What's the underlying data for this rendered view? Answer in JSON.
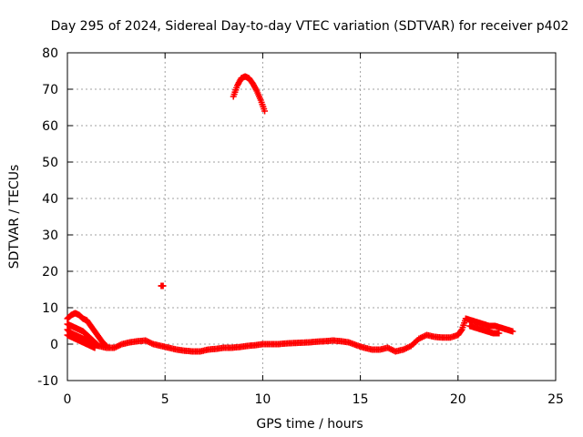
{
  "chart_data": {
    "type": "scatter",
    "title": "Day 295 of 2024, Sidereal Day-to-day VTEC variation (SDTVAR) for receiver p402",
    "xlabel": "GPS time / hours",
    "ylabel": "SDTVAR / TECUs",
    "xlim": [
      0,
      25
    ],
    "ylim": [
      -10,
      80
    ],
    "x_ticks": [
      0,
      5,
      10,
      15,
      20,
      25
    ],
    "x_tick_labels": [
      "0",
      "5",
      "10",
      "15",
      "20",
      "25"
    ],
    "y_ticks": [
      -10,
      0,
      10,
      20,
      30,
      40,
      50,
      60,
      70,
      80
    ],
    "y_tick_labels": [
      "-10",
      "0",
      "10",
      "20",
      "30",
      "40",
      "50",
      "60",
      "70",
      "80"
    ],
    "grid": true,
    "marker": "plus",
    "series": [
      {
        "name": "main trace",
        "color": "#ff0000",
        "x": [
          0.0,
          0.2,
          0.4,
          0.6,
          0.8,
          1.0,
          1.3,
          1.6,
          2.0,
          2.4,
          2.8,
          3.2,
          3.6,
          4.0,
          4.4,
          4.8,
          5.2,
          5.6,
          6.0,
          6.4,
          6.8,
          7.2,
          7.6,
          8.0,
          8.4,
          8.8,
          9.2,
          9.6,
          10.0,
          10.4,
          10.8,
          11.2,
          11.6,
          12.0,
          12.4,
          12.8,
          13.2,
          13.6,
          14.0,
          14.4,
          14.8,
          15.2,
          15.6,
          16.0,
          16.4,
          16.8,
          17.2,
          17.6,
          18.0,
          18.4,
          18.8,
          19.2,
          19.6,
          20.0,
          20.2,
          20.4
        ],
        "values": [
          4.0,
          3.0,
          2.5,
          2.0,
          1.5,
          1.0,
          0.0,
          -0.5,
          -1.0,
          -1.0,
          0.0,
          0.5,
          0.8,
          1.0,
          0.0,
          -0.5,
          -1.0,
          -1.5,
          -1.8,
          -2.0,
          -2.0,
          -1.5,
          -1.3,
          -1.0,
          -1.0,
          -0.8,
          -0.5,
          -0.3,
          0.0,
          0.0,
          0.0,
          0.2,
          0.3,
          0.4,
          0.5,
          0.7,
          0.8,
          1.0,
          0.8,
          0.5,
          -0.3,
          -1.0,
          -1.5,
          -1.5,
          -1.0,
          -2.0,
          -1.5,
          -0.5,
          1.5,
          2.5,
          2.0,
          1.8,
          1.8,
          2.5,
          4.0,
          7.0
        ]
      },
      {
        "name": "early branch upper",
        "color": "#ff0000",
        "x": [
          0.0,
          0.2,
          0.4,
          0.6,
          0.8,
          1.0,
          1.2,
          1.4,
          1.6,
          1.8,
          2.0
        ],
        "values": [
          7.0,
          8.0,
          8.5,
          8.0,
          7.0,
          6.5,
          5.0,
          3.5,
          2.0,
          0.5,
          -0.5
        ]
      },
      {
        "name": "early branch middle",
        "color": "#ff0000",
        "x": [
          0.0,
          0.2,
          0.4,
          0.6,
          0.8,
          1.0,
          1.2,
          1.4,
          1.6
        ],
        "values": [
          5.5,
          5.0,
          4.5,
          4.0,
          3.5,
          2.5,
          1.5,
          0.5,
          -0.5
        ]
      },
      {
        "name": "early branch lower",
        "color": "#ff0000",
        "x": [
          0.0,
          0.2,
          0.4,
          0.6,
          0.8,
          1.0,
          1.2,
          1.4
        ],
        "values": [
          2.5,
          2.0,
          1.5,
          1.0,
          0.5,
          0.0,
          -0.5,
          -1.0
        ]
      },
      {
        "name": "late arc segment",
        "color": "#ff0000",
        "x": [
          20.4,
          20.7,
          21.0,
          21.3,
          21.6,
          21.9,
          22.2,
          22.5,
          22.8
        ],
        "values": [
          7.0,
          6.5,
          6.0,
          5.5,
          5.0,
          5.0,
          4.5,
          4.0,
          3.5
        ]
      },
      {
        "name": "late lower segment",
        "color": "#ff0000",
        "x": [
          20.6,
          20.9,
          21.2,
          21.5,
          21.8,
          22.1
        ],
        "values": [
          5.0,
          4.5,
          4.0,
          3.5,
          3.0,
          3.0
        ]
      },
      {
        "name": "isolated point",
        "color": "#ff0000",
        "x": [
          4.8,
          4.9
        ],
        "values": [
          16.0,
          16.0
        ]
      },
      {
        "name": "high arc",
        "color": "#ff0000",
        "x": [
          8.5,
          8.7,
          8.9,
          9.1,
          9.3,
          9.5,
          9.7,
          9.9,
          10.1
        ],
        "values": [
          68.0,
          71.0,
          73.0,
          73.5,
          73.0,
          71.5,
          69.5,
          67.0,
          64.0
        ]
      }
    ]
  }
}
